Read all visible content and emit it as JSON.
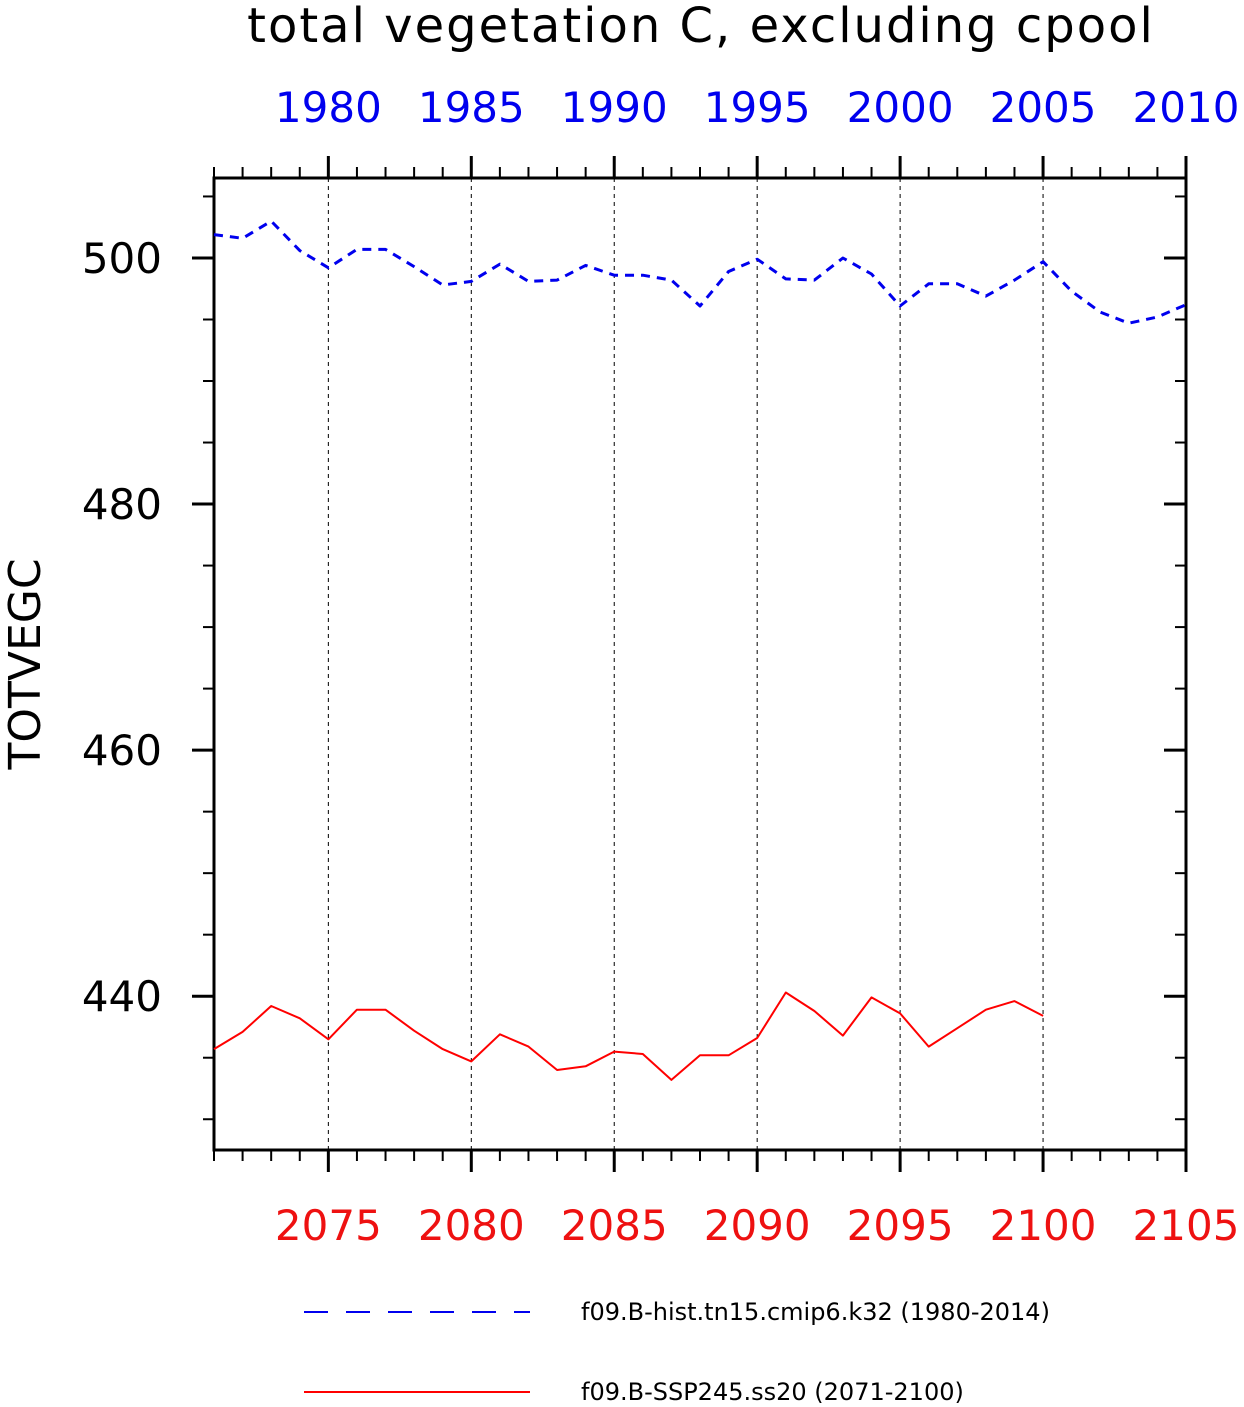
{
  "chart_data": {
    "type": "line",
    "title": "total vegetation C, excluding cpool",
    "ylabel": "TOTVEGC",
    "ylim": [
      427.5,
      506.5
    ],
    "y_ticks": [
      {
        "value": 440,
        "label": "440"
      },
      {
        "value": 460,
        "label": "460"
      },
      {
        "value": 480,
        "label": "480"
      },
      {
        "value": 500,
        "label": "500"
      }
    ],
    "y_minor_step": 5,
    "x_bottom": {
      "range": [
        2071,
        2105
      ],
      "ticks": [
        {
          "value": 2075,
          "label": "2075"
        },
        {
          "value": 2080,
          "label": "2080"
        },
        {
          "value": 2085,
          "label": "2085"
        },
        {
          "value": 2090,
          "label": "2090"
        },
        {
          "value": 2095,
          "label": "2095"
        },
        {
          "value": 2100,
          "label": "2100"
        },
        {
          "value": 2105,
          "label": "2105"
        }
      ],
      "color": "#ee1111"
    },
    "x_top": {
      "range": [
        1976,
        2010
      ],
      "ticks": [
        {
          "value": 1980,
          "label": "1980"
        },
        {
          "value": 1985,
          "label": "1985"
        },
        {
          "value": 1990,
          "label": "1990"
        },
        {
          "value": 1995,
          "label": "1995"
        },
        {
          "value": 2000,
          "label": "2000"
        },
        {
          "value": 2005,
          "label": "2005"
        },
        {
          "value": 2010,
          "label": "2010"
        }
      ],
      "color": "#0000ee"
    },
    "grid": "dashed vertical lines at major ticks",
    "legend": "bottom",
    "series": [
      {
        "name": "f09.B-hist.tn15.cmip6.k32 (1980-2014)",
        "color": "#0000ee",
        "style": "dashed",
        "axis": "top",
        "x": [
          1976,
          1977,
          1978,
          1979,
          1980,
          1981,
          1982,
          1983,
          1984,
          1985,
          1986,
          1987,
          1988,
          1989,
          1990,
          1991,
          1992,
          1993,
          1994,
          1995,
          1996,
          1997,
          1998,
          1999,
          2000,
          2001,
          2002,
          2003,
          2004,
          2005,
          2006,
          2007,
          2008,
          2009,
          2010
        ],
        "values": [
          501.9,
          501.6,
          503.0,
          500.6,
          499.2,
          500.7,
          500.7,
          499.3,
          497.8,
          498.1,
          499.5,
          498.1,
          498.2,
          499.4,
          498.6,
          498.6,
          498.2,
          496.1,
          498.9,
          499.9,
          498.3,
          498.2,
          500.0,
          498.7,
          496.1,
          497.9,
          497.9,
          496.9,
          498.2,
          499.7,
          497.3,
          495.6,
          494.7,
          495.2,
          496.2
        ]
      },
      {
        "name": "f09.B-SSP245.ss20 (2071-2100)",
        "color": "#ff0000",
        "style": "solid",
        "axis": "bottom",
        "x": [
          2071,
          2072,
          2073,
          2074,
          2075,
          2076,
          2077,
          2078,
          2079,
          2080,
          2081,
          2082,
          2083,
          2084,
          2085,
          2086,
          2087,
          2088,
          2089,
          2090,
          2091,
          2092,
          2093,
          2094,
          2095,
          2096,
          2097,
          2098,
          2099,
          2100
        ],
        "values": [
          435.7,
          437.1,
          439.2,
          438.2,
          436.5,
          438.9,
          438.9,
          437.2,
          435.7,
          434.7,
          436.9,
          435.9,
          434.0,
          434.3,
          435.5,
          435.3,
          433.2,
          435.2,
          435.2,
          436.6,
          440.3,
          438.8,
          436.8,
          439.9,
          438.6,
          435.9,
          437.4,
          438.9,
          439.6,
          438.4
        ]
      }
    ]
  }
}
